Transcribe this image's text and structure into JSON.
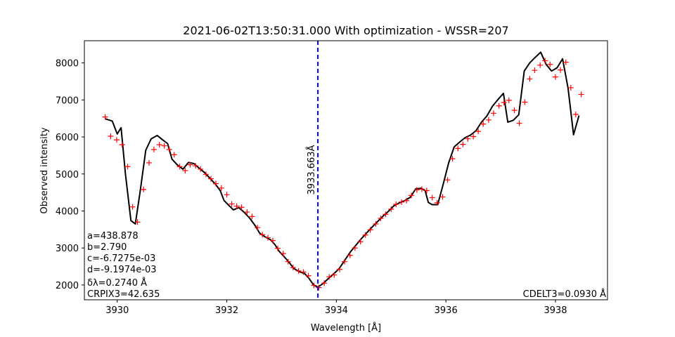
{
  "chart_data": {
    "type": "line",
    "title": "2021-06-02T13:50:31.000 With optimization - WSSR=207",
    "xlabel": "Wavelength [Å]",
    "ylabel": "Observed intensity",
    "xlim": [
      3929.4,
      3938.95
    ],
    "ylim": [
      1600,
      8600
    ],
    "x_ticks": [
      3930,
      3932,
      3934,
      3936,
      3938
    ],
    "y_ticks": [
      2000,
      3000,
      4000,
      5000,
      6000,
      7000,
      8000
    ],
    "grid": false,
    "colors": {
      "model": "#000000",
      "observed": "#ff0000",
      "marker_line": "#0000ff"
    },
    "vline": {
      "x": 3933.663,
      "label": "3933.663Å"
    },
    "params": [
      "a=438.878",
      "b=2.790",
      "c=-6.7275e-03",
      "d=-9.1974e-03",
      "δλ=0.2740 Å",
      "CRPIX3=42.635"
    ],
    "cdelt": "CDELT3=0.0930 Å",
    "series": [
      {
        "style": "line",
        "points": [
          [
            3929.78,
            6490
          ],
          [
            3929.91,
            6430
          ],
          [
            3930.0,
            6080
          ],
          [
            3930.07,
            6250
          ],
          [
            3930.15,
            5000
          ],
          [
            3930.25,
            3740
          ],
          [
            3930.33,
            3650
          ],
          [
            3930.42,
            4550
          ],
          [
            3930.52,
            5640
          ],
          [
            3930.62,
            5950
          ],
          [
            3930.73,
            6040
          ],
          [
            3930.82,
            5930
          ],
          [
            3930.92,
            5820
          ],
          [
            3931.0,
            5400
          ],
          [
            3931.1,
            5240
          ],
          [
            3931.2,
            5130
          ],
          [
            3931.3,
            5310
          ],
          [
            3931.4,
            5280
          ],
          [
            3931.5,
            5150
          ],
          [
            3931.6,
            5030
          ],
          [
            3931.7,
            4870
          ],
          [
            3931.8,
            4710
          ],
          [
            3931.88,
            4550
          ],
          [
            3931.95,
            4280
          ],
          [
            3932.05,
            4130
          ],
          [
            3932.12,
            4030
          ],
          [
            3932.22,
            4090
          ],
          [
            3932.32,
            3960
          ],
          [
            3932.42,
            3800
          ],
          [
            3932.52,
            3600
          ],
          [
            3932.6,
            3400
          ],
          [
            3932.7,
            3300
          ],
          [
            3932.8,
            3220
          ],
          [
            3932.88,
            3090
          ],
          [
            3932.95,
            2920
          ],
          [
            3933.05,
            2760
          ],
          [
            3933.15,
            2590
          ],
          [
            3933.22,
            2450
          ],
          [
            3933.32,
            2360
          ],
          [
            3933.42,
            2310
          ],
          [
            3933.5,
            2180
          ],
          [
            3933.58,
            2010
          ],
          [
            3933.66,
            1940
          ],
          [
            3933.75,
            2030
          ],
          [
            3933.85,
            2170
          ],
          [
            3933.95,
            2300
          ],
          [
            3934.05,
            2440
          ],
          [
            3934.15,
            2660
          ],
          [
            3934.25,
            2880
          ],
          [
            3934.35,
            3060
          ],
          [
            3934.45,
            3240
          ],
          [
            3934.55,
            3400
          ],
          [
            3934.65,
            3560
          ],
          [
            3934.75,
            3710
          ],
          [
            3934.85,
            3860
          ],
          [
            3934.95,
            3990
          ],
          [
            3935.05,
            4140
          ],
          [
            3935.15,
            4220
          ],
          [
            3935.25,
            4280
          ],
          [
            3935.35,
            4370
          ],
          [
            3935.45,
            4600
          ],
          [
            3935.55,
            4610
          ],
          [
            3935.62,
            4550
          ],
          [
            3935.68,
            4230
          ],
          [
            3935.75,
            4170
          ],
          [
            3935.85,
            4170
          ],
          [
            3935.95,
            4720
          ],
          [
            3936.05,
            5300
          ],
          [
            3936.15,
            5730
          ],
          [
            3936.25,
            5860
          ],
          [
            3936.35,
            5980
          ],
          [
            3936.45,
            6050
          ],
          [
            3936.55,
            6170
          ],
          [
            3936.65,
            6400
          ],
          [
            3936.75,
            6570
          ],
          [
            3936.85,
            6830
          ],
          [
            3936.95,
            7010
          ],
          [
            3937.05,
            7180
          ],
          [
            3937.13,
            6400
          ],
          [
            3937.23,
            6450
          ],
          [
            3937.33,
            6600
          ],
          [
            3937.43,
            7780
          ],
          [
            3937.53,
            8000
          ],
          [
            3937.63,
            8150
          ],
          [
            3937.73,
            8290
          ],
          [
            3937.83,
            7960
          ],
          [
            3937.93,
            7780
          ],
          [
            3938.03,
            7870
          ],
          [
            3938.13,
            8110
          ],
          [
            3938.23,
            7320
          ],
          [
            3938.33,
            6060
          ],
          [
            3938.43,
            6580
          ]
        ]
      },
      {
        "style": "marker",
        "points": [
          [
            3929.78,
            6540
          ],
          [
            3929.88,
            6020
          ],
          [
            3929.99,
            5920
          ],
          [
            3930.09,
            5790
          ],
          [
            3930.19,
            5200
          ],
          [
            3930.28,
            4110
          ],
          [
            3930.37,
            3700
          ],
          [
            3930.48,
            4580
          ],
          [
            3930.58,
            5300
          ],
          [
            3930.67,
            5660
          ],
          [
            3930.77,
            5790
          ],
          [
            3930.86,
            5760
          ],
          [
            3930.95,
            5660
          ],
          [
            3931.04,
            5520
          ],
          [
            3931.14,
            5200
          ],
          [
            3931.24,
            5090
          ],
          [
            3931.33,
            5250
          ],
          [
            3931.43,
            5220
          ],
          [
            3931.52,
            5130
          ],
          [
            3931.62,
            4990
          ],
          [
            3931.71,
            4870
          ],
          [
            3931.8,
            4740
          ],
          [
            3931.9,
            4620
          ],
          [
            3932.0,
            4440
          ],
          [
            3932.09,
            4190
          ],
          [
            3932.18,
            4130
          ],
          [
            3932.27,
            4100
          ],
          [
            3932.37,
            3970
          ],
          [
            3932.46,
            3850
          ],
          [
            3932.56,
            3550
          ],
          [
            3932.65,
            3360
          ],
          [
            3932.75,
            3280
          ],
          [
            3932.84,
            3200
          ],
          [
            3932.93,
            2990
          ],
          [
            3933.03,
            2850
          ],
          [
            3933.12,
            2630
          ],
          [
            3933.21,
            2470
          ],
          [
            3933.31,
            2380
          ],
          [
            3933.4,
            2350
          ],
          [
            3933.49,
            2250
          ],
          [
            3933.59,
            1990
          ],
          [
            3933.68,
            1930
          ],
          [
            3933.78,
            2050
          ],
          [
            3933.87,
            2220
          ],
          [
            3933.96,
            2270
          ],
          [
            3934.06,
            2420
          ],
          [
            3934.15,
            2630
          ],
          [
            3934.25,
            2800
          ],
          [
            3934.34,
            3000
          ],
          [
            3934.44,
            3170
          ],
          [
            3934.53,
            3350
          ],
          [
            3934.62,
            3490
          ],
          [
            3934.72,
            3650
          ],
          [
            3934.81,
            3800
          ],
          [
            3934.9,
            3910
          ],
          [
            3935.0,
            4050
          ],
          [
            3935.09,
            4180
          ],
          [
            3935.19,
            4240
          ],
          [
            3935.28,
            4280
          ],
          [
            3935.37,
            4420
          ],
          [
            3935.47,
            4570
          ],
          [
            3935.56,
            4590
          ],
          [
            3935.65,
            4550
          ],
          [
            3935.75,
            4360
          ],
          [
            3935.84,
            4220
          ],
          [
            3935.94,
            4380
          ],
          [
            3936.03,
            4840
          ],
          [
            3936.12,
            5410
          ],
          [
            3936.22,
            5690
          ],
          [
            3936.31,
            5800
          ],
          [
            3936.4,
            5950
          ],
          [
            3936.5,
            6010
          ],
          [
            3936.59,
            6150
          ],
          [
            3936.68,
            6350
          ],
          [
            3936.78,
            6460
          ],
          [
            3936.87,
            6640
          ],
          [
            3936.97,
            6840
          ],
          [
            3937.06,
            6930
          ],
          [
            3937.15,
            6990
          ],
          [
            3937.25,
            6720
          ],
          [
            3937.34,
            6370
          ],
          [
            3937.44,
            6940
          ],
          [
            3937.53,
            7570
          ],
          [
            3937.62,
            7800
          ],
          [
            3937.72,
            7940
          ],
          [
            3937.81,
            8060
          ],
          [
            3937.9,
            7960
          ],
          [
            3938.0,
            7620
          ],
          [
            3938.09,
            7810
          ],
          [
            3938.19,
            8020
          ],
          [
            3938.28,
            7330
          ],
          [
            3938.37,
            6610
          ],
          [
            3938.47,
            7150
          ]
        ]
      }
    ]
  }
}
